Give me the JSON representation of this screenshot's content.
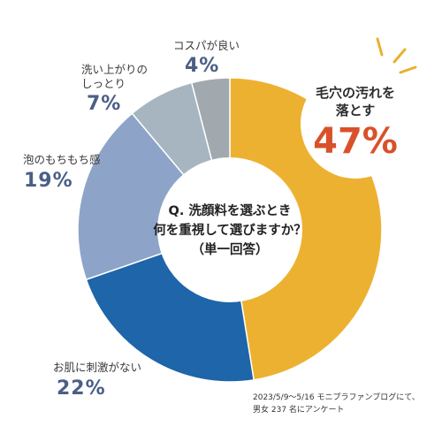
{
  "colors": {
    "highlight_pct": "#d9512a",
    "label_pct": "#4a5f86",
    "ray": "#e8b131"
  },
  "chart_data": {
    "type": "pie",
    "subtype": "donut",
    "title": "Q. 洗顔料を選ぶとき 何を重視して選びますか？ （単一回答）",
    "categories": [
      "毛穴の汚れを落とす",
      "お肌に刺激がない",
      "泡のもちもち感",
      "洗い上がりのしっとり",
      "コスパが良い"
    ],
    "values": [
      47,
      22,
      19,
      7,
      4
    ],
    "unit": "%",
    "colors": [
      "#edb131",
      "#1e65a9",
      "#8ea3c8",
      "#a6b5c0",
      "#a1a9ae"
    ]
  },
  "center_text": {
    "line1": "Q. 洗顔料を選ぶとき",
    "line2": "何を重視して選びますか？",
    "line3": "（単一回答）"
  },
  "labels": {
    "top": {
      "name": "毛穴の汚れを落とす",
      "name_line1": "毛穴の汚れを",
      "name_line2": "落とす",
      "pct": "47%"
    },
    "skin": {
      "name": "お肌に刺激がない",
      "pct": "22%"
    },
    "foam": {
      "name": "泡のもちもち感",
      "pct": "19%"
    },
    "moist": {
      "name_line1": "洗い上がりの",
      "name_line2": "しっとり",
      "pct": "7%"
    },
    "cost": {
      "name": "コスパが良い",
      "pct": "4%"
    }
  },
  "footnote": {
    "line1": "2023/5/9〜5/16 モニプラファンブログにて、",
    "line2": "男女 237 名にアンケート"
  }
}
